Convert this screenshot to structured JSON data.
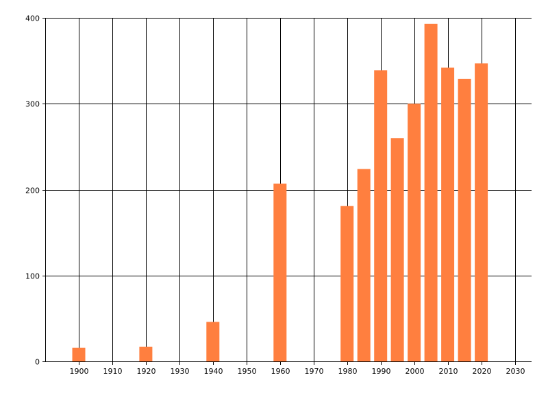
{
  "chart_data": {
    "type": "bar",
    "title": "",
    "xlabel": "",
    "ylabel": "",
    "x": [
      1900,
      1920,
      1940,
      1960,
      1980,
      1985,
      1990,
      1995,
      2000,
      2005,
      2010,
      2015,
      2020
    ],
    "values": [
      16,
      17,
      46,
      207,
      181,
      224,
      339,
      260,
      300,
      393,
      342,
      329,
      347
    ],
    "xlim": [
      1890,
      2035
    ],
    "ylim": [
      0,
      400
    ],
    "x_ticks": [
      1900,
      1910,
      1920,
      1930,
      1940,
      1950,
      1960,
      1970,
      1980,
      1990,
      2000,
      2010,
      2020,
      2030
    ],
    "y_ticks": [
      0,
      100,
      200,
      300,
      400
    ],
    "grid": true,
    "legend": "none",
    "colors": {
      "bar": "#ff7f3f",
      "grid": "#000000",
      "axis": "#000000",
      "background": "#ffffff"
    }
  }
}
